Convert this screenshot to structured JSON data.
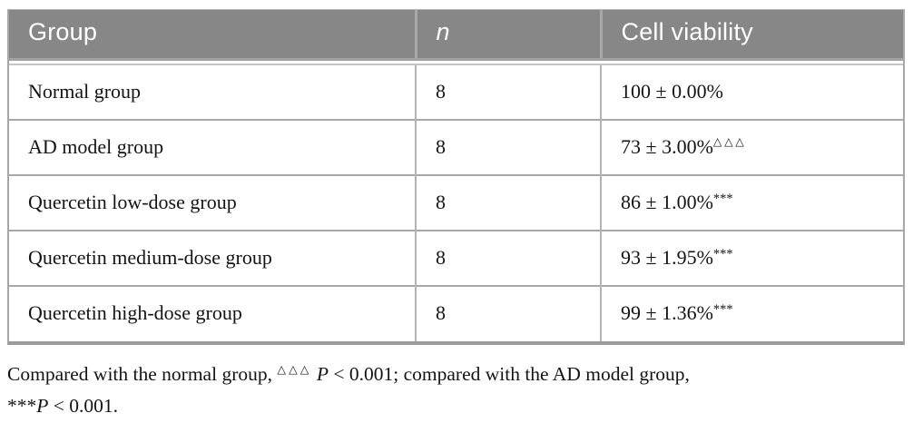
{
  "table": {
    "columns": [
      {
        "key": "group",
        "label": "Group"
      },
      {
        "key": "n",
        "label": "n"
      },
      {
        "key": "viability",
        "label": "Cell viability"
      }
    ],
    "rows": [
      {
        "group": "Normal group",
        "n": "8",
        "viability": "100 ± 0.00%",
        "marker": "",
        "marker_type": "none"
      },
      {
        "group": "AD model group",
        "n": "8",
        "viability": "73 ± 3.00%",
        "marker": "△△△",
        "marker_type": "triangle"
      },
      {
        "group": "Quercetin low-dose group",
        "n": "8",
        "viability": "86 ± 1.00%",
        "marker": "***",
        "marker_type": "star"
      },
      {
        "group": "Quercetin medium-dose group",
        "n": "8",
        "viability": "93 ± 1.95%",
        "marker": "***",
        "marker_type": "star"
      },
      {
        "group": "Quercetin high-dose group",
        "n": "8",
        "viability": "99 ± 1.36%",
        "marker": "***",
        "marker_type": "star"
      }
    ]
  },
  "footnote": {
    "segments": [
      {
        "style": "text",
        "text": "Compared with the normal group, "
      },
      {
        "style": "sup",
        "text": "△△△"
      },
      {
        "style": "text",
        "text": " "
      },
      {
        "style": "italic",
        "text": "P"
      },
      {
        "style": "text",
        "text": " < 0.001; compared with the AD model group,"
      },
      {
        "style": "break",
        "text": ""
      },
      {
        "style": "text",
        "text": "***"
      },
      {
        "style": "italic",
        "text": "P"
      },
      {
        "style": "text",
        "text": " < 0.001."
      }
    ]
  },
  "colors": {
    "header_bg": "#878787",
    "header_text": "#ffffff",
    "body_bg": "#ffffff",
    "border": "#a8a8a8",
    "bottom_border": "#9c9c9c",
    "text": "#141414"
  }
}
